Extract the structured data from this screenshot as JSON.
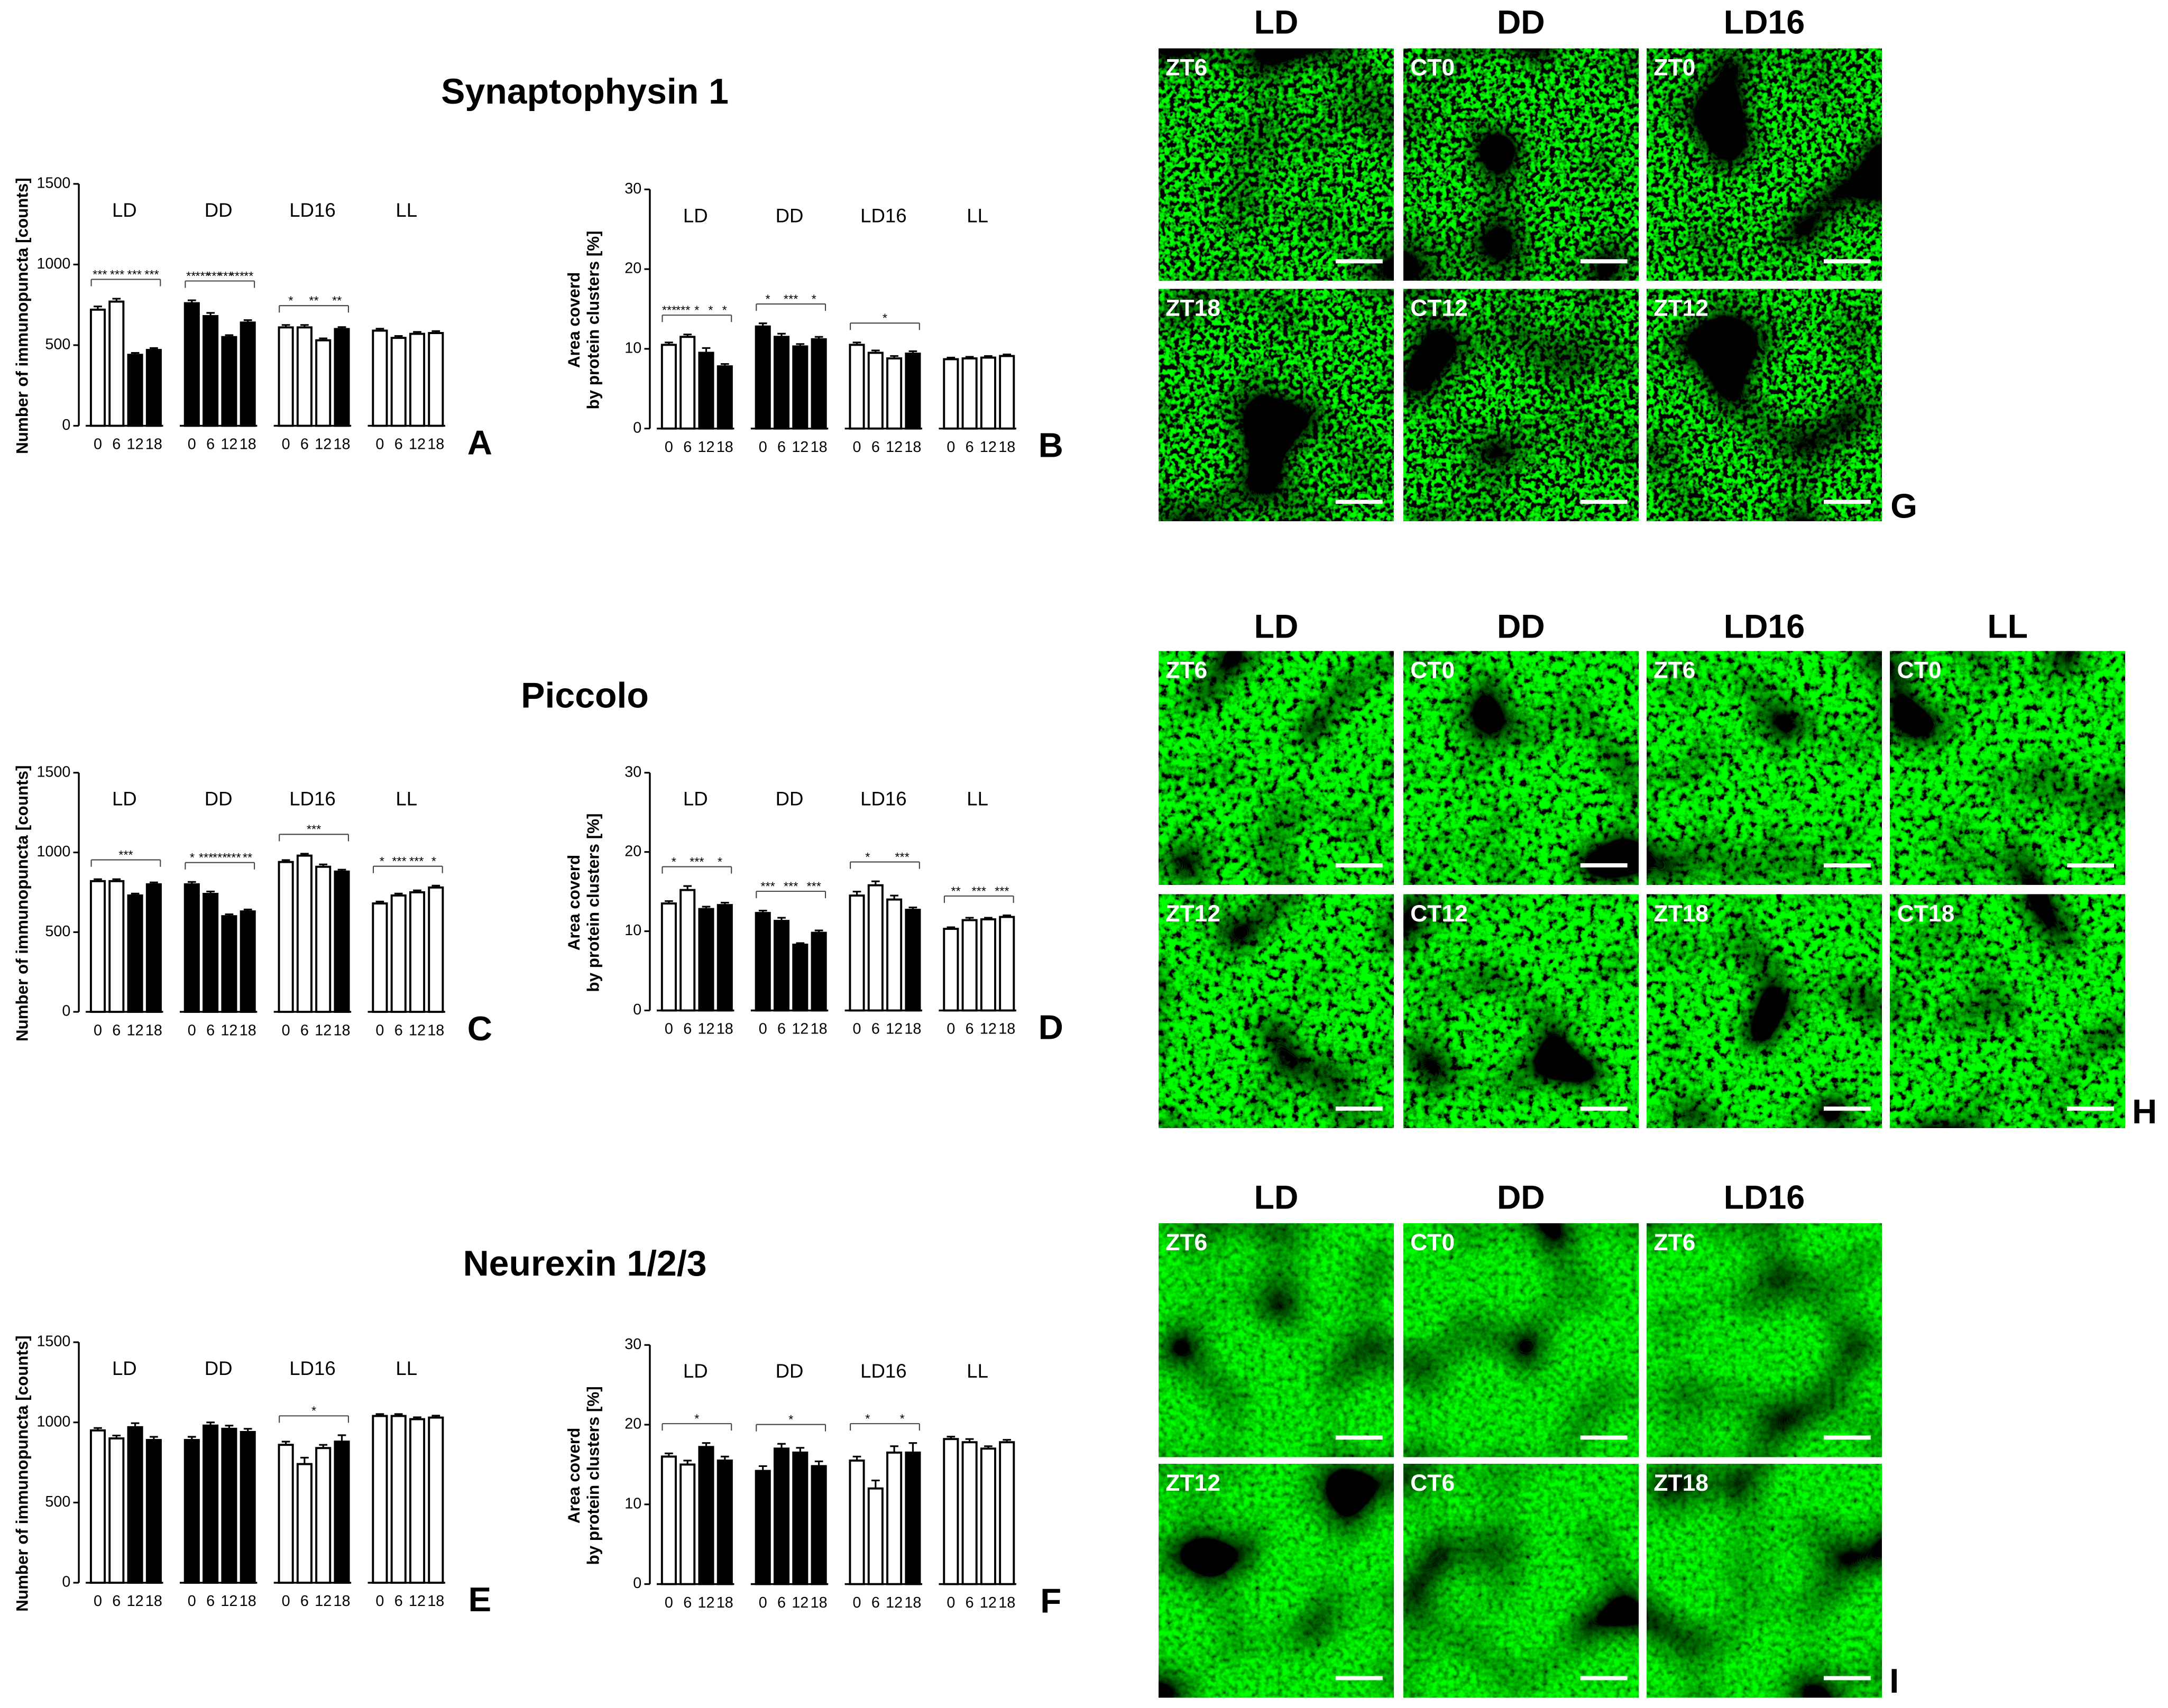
{
  "chart_data": [
    {
      "type": "bar",
      "panel": "A",
      "title": "Synaptophysin 1",
      "ylabel": "Number of immunopuncta [counts]",
      "ylim": [
        0,
        1500
      ],
      "yticks": [
        0,
        500,
        1000,
        1500
      ],
      "groups": [
        {
          "name": "LD",
          "categories": [
            0,
            6,
            12,
            18
          ],
          "values": [
            720,
            770,
            440,
            470
          ],
          "errors": [
            20,
            18,
            12,
            12
          ],
          "colors": [
            "#ffffff",
            "#ffffff",
            "#000000",
            "#000000"
          ],
          "annotations": [
            "***",
            "***",
            "***",
            "***"
          ]
        },
        {
          "name": "DD",
          "categories": [
            0,
            6,
            12,
            18
          ],
          "values": [
            760,
            680,
            550,
            640
          ],
          "errors": [
            18,
            20,
            12,
            15
          ],
          "colors": [
            "#000000",
            "#000000",
            "#000000",
            "#000000"
          ],
          "annotations": [
            "**",
            "***",
            "***",
            "***",
            "***",
            "**"
          ]
        },
        {
          "name": "LD16",
          "categories": [
            0,
            6,
            12,
            18
          ],
          "values": [
            610,
            610,
            530,
            600
          ],
          "errors": [
            15,
            15,
            12,
            12
          ],
          "colors": [
            "#ffffff",
            "#ffffff",
            "#ffffff",
            "#000000"
          ],
          "annotations": [
            "*",
            "**",
            "**"
          ]
        },
        {
          "name": "LL",
          "categories": [
            0,
            6,
            12,
            18
          ],
          "values": [
            590,
            545,
            570,
            575
          ],
          "errors": [
            12,
            12,
            12,
            12
          ],
          "colors": [
            "#ffffff",
            "#ffffff",
            "#ffffff",
            "#ffffff"
          ],
          "annotations": []
        }
      ]
    },
    {
      "type": "bar",
      "panel": "B",
      "ylabel": [
        "Area coverd",
        "by protein clusters [%]"
      ],
      "ylim": [
        0,
        30
      ],
      "yticks": [
        0,
        10,
        20,
        30
      ],
      "groups": [
        {
          "name": "LD",
          "categories": [
            0,
            6,
            12,
            18
          ],
          "values": [
            10.5,
            11.5,
            9.5,
            7.8
          ],
          "errors": [
            0.3,
            0.3,
            0.6,
            0.3
          ],
          "colors": [
            "#ffffff",
            "#ffffff",
            "#000000",
            "#000000"
          ],
          "annotations": [
            "***",
            "***",
            "*",
            "*",
            "*"
          ]
        },
        {
          "name": "DD",
          "categories": [
            0,
            6,
            12,
            18
          ],
          "values": [
            12.8,
            11.5,
            10.3,
            11.2
          ],
          "errors": [
            0.4,
            0.4,
            0.3,
            0.3
          ],
          "colors": [
            "#000000",
            "#000000",
            "#000000",
            "#000000"
          ],
          "annotations": [
            "*",
            "***",
            "*"
          ]
        },
        {
          "name": "LD16",
          "categories": [
            0,
            6,
            12,
            18
          ],
          "values": [
            10.5,
            9.5,
            8.8,
            9.4
          ],
          "errors": [
            0.3,
            0.3,
            0.3,
            0.3
          ],
          "colors": [
            "#ffffff",
            "#ffffff",
            "#ffffff",
            "#000000"
          ],
          "annotations": [
            "*"
          ]
        },
        {
          "name": "LL",
          "categories": [
            0,
            6,
            12,
            18
          ],
          "values": [
            8.7,
            8.8,
            8.9,
            9.1
          ],
          "errors": [
            0.2,
            0.2,
            0.2,
            0.2
          ],
          "colors": [
            "#ffffff",
            "#ffffff",
            "#ffffff",
            "#ffffff"
          ],
          "annotations": []
        }
      ]
    },
    {
      "type": "bar",
      "panel": "C",
      "title": "Piccolo",
      "ylabel": "Number of immunopuncta [counts]",
      "ylim": [
        0,
        1500
      ],
      "yticks": [
        0,
        500,
        1000,
        1500
      ],
      "groups": [
        {
          "name": "LD",
          "categories": [
            0,
            6,
            12,
            18
          ],
          "values": [
            820,
            820,
            730,
            800
          ],
          "errors": [
            12,
            12,
            12,
            12
          ],
          "colors": [
            "#ffffff",
            "#ffffff",
            "#000000",
            "#000000"
          ],
          "annotations": [
            "***"
          ]
        },
        {
          "name": "DD",
          "categories": [
            0,
            6,
            12,
            18
          ],
          "values": [
            800,
            740,
            600,
            630
          ],
          "errors": [
            15,
            15,
            12,
            12
          ],
          "colors": [
            "#000000",
            "#000000",
            "#000000",
            "#000000"
          ],
          "annotations": [
            "*",
            "***",
            "***",
            "***",
            "**"
          ]
        },
        {
          "name": "LD16",
          "categories": [
            0,
            6,
            12,
            18
          ],
          "values": [
            940,
            980,
            910,
            880
          ],
          "errors": [
            12,
            12,
            15,
            12
          ],
          "colors": [
            "#ffffff",
            "#ffffff",
            "#ffffff",
            "#000000"
          ],
          "annotations": [
            "***"
          ]
        },
        {
          "name": "LL",
          "categories": [
            0,
            6,
            12,
            18
          ],
          "values": [
            680,
            730,
            750,
            780
          ],
          "errors": [
            12,
            12,
            12,
            12
          ],
          "colors": [
            "#ffffff",
            "#ffffff",
            "#ffffff",
            "#ffffff"
          ],
          "annotations": [
            "*",
            "***",
            "***",
            "*"
          ]
        }
      ]
    },
    {
      "type": "bar",
      "panel": "D",
      "ylabel": [
        "Area coverd",
        "by protein clusters [%]"
      ],
      "ylim": [
        0,
        30
      ],
      "yticks": [
        0,
        10,
        20,
        30
      ],
      "groups": [
        {
          "name": "LD",
          "categories": [
            0,
            6,
            12,
            18
          ],
          "values": [
            13.5,
            15.2,
            12.8,
            13.3
          ],
          "errors": [
            0.3,
            0.5,
            0.3,
            0.3
          ],
          "colors": [
            "#ffffff",
            "#ffffff",
            "#000000",
            "#000000"
          ],
          "annotations": [
            "*",
            "***",
            "*"
          ]
        },
        {
          "name": "DD",
          "categories": [
            0,
            6,
            12,
            18
          ],
          "values": [
            12.3,
            11.3,
            8.3,
            9.8
          ],
          "errors": [
            0.3,
            0.4,
            0.2,
            0.3
          ],
          "colors": [
            "#000000",
            "#000000",
            "#000000",
            "#000000"
          ],
          "annotations": [
            "***",
            "***",
            "***"
          ]
        },
        {
          "name": "LD16",
          "categories": [
            0,
            6,
            12,
            18
          ],
          "values": [
            14.5,
            15.8,
            14,
            12.7
          ],
          "errors": [
            0.5,
            0.5,
            0.5,
            0.3
          ],
          "colors": [
            "#ffffff",
            "#ffffff",
            "#ffffff",
            "#000000"
          ],
          "annotations": [
            "*",
            "***"
          ]
        },
        {
          "name": "LL",
          "categories": [
            0,
            6,
            12,
            18
          ],
          "values": [
            10.3,
            11.4,
            11.5,
            11.8
          ],
          "errors": [
            0.2,
            0.3,
            0.2,
            0.2
          ],
          "colors": [
            "#ffffff",
            "#ffffff",
            "#ffffff",
            "#ffffff"
          ],
          "annotations": [
            "**",
            "***",
            "***"
          ]
        }
      ]
    },
    {
      "type": "bar",
      "panel": "E",
      "title": "Neurexin 1/2/3",
      "ylabel": "Number of immunopuncta [counts]",
      "ylim": [
        0,
        1500
      ],
      "yticks": [
        0,
        500,
        1000,
        1500
      ],
      "groups": [
        {
          "name": "LD",
          "categories": [
            0,
            6,
            12,
            18
          ],
          "values": [
            950,
            900,
            970,
            890
          ],
          "errors": [
            15,
            18,
            25,
            20
          ],
          "colors": [
            "#ffffff",
            "#ffffff",
            "#000000",
            "#000000"
          ],
          "annotations": []
        },
        {
          "name": "DD",
          "categories": [
            0,
            6,
            12,
            18
          ],
          "values": [
            890,
            980,
            960,
            940
          ],
          "errors": [
            20,
            20,
            20,
            20
          ],
          "colors": [
            "#000000",
            "#000000",
            "#000000",
            "#000000"
          ],
          "annotations": []
        },
        {
          "name": "LD16",
          "categories": [
            0,
            6,
            12,
            18
          ],
          "values": [
            860,
            740,
            840,
            880
          ],
          "errors": [
            20,
            40,
            20,
            40
          ],
          "colors": [
            "#ffffff",
            "#ffffff",
            "#ffffff",
            "#000000"
          ],
          "annotations": [
            "*"
          ]
        },
        {
          "name": "LL",
          "categories": [
            0,
            6,
            12,
            18
          ],
          "values": [
            1040,
            1040,
            1020,
            1030
          ],
          "errors": [
            12,
            12,
            12,
            12
          ],
          "colors": [
            "#ffffff",
            "#ffffff",
            "#ffffff",
            "#ffffff"
          ],
          "annotations": []
        }
      ]
    },
    {
      "type": "bar",
      "panel": "F",
      "ylabel": [
        "Area coverd",
        "by protein clusters [%]"
      ],
      "ylim": [
        0,
        30
      ],
      "yticks": [
        0,
        10,
        20,
        30
      ],
      "groups": [
        {
          "name": "LD",
          "categories": [
            0,
            6,
            12,
            18
          ],
          "values": [
            16,
            15,
            17.2,
            15.5
          ],
          "errors": [
            0.4,
            0.5,
            0.5,
            0.5
          ],
          "colors": [
            "#ffffff",
            "#ffffff",
            "#000000",
            "#000000"
          ],
          "annotations": [
            "*"
          ]
        },
        {
          "name": "DD",
          "categories": [
            0,
            6,
            12,
            18
          ],
          "values": [
            14.2,
            17,
            16.5,
            14.8
          ],
          "errors": [
            0.6,
            0.6,
            0.6,
            0.6
          ],
          "colors": [
            "#000000",
            "#000000",
            "#000000",
            "#000000"
          ],
          "annotations": [
            "*"
          ]
        },
        {
          "name": "LD16",
          "categories": [
            0,
            6,
            12,
            18
          ],
          "values": [
            15.5,
            12,
            16.5,
            16.5
          ],
          "errors": [
            0.5,
            1.0,
            0.8,
            1.2
          ],
          "colors": [
            "#ffffff",
            "#ffffff",
            "#ffffff",
            "#000000"
          ],
          "annotations": [
            "*",
            "*"
          ]
        },
        {
          "name": "LL",
          "categories": [
            0,
            6,
            12,
            18
          ],
          "values": [
            18.2,
            17.8,
            17,
            17.8
          ],
          "errors": [
            0.3,
            0.4,
            0.3,
            0.3
          ],
          "colors": [
            "#ffffff",
            "#ffffff",
            "#ffffff",
            "#ffffff"
          ],
          "annotations": []
        }
      ]
    }
  ],
  "image_panels": [
    {
      "letter": "G",
      "columns": [
        "LD",
        "DD",
        "LD16"
      ],
      "cells": [
        [
          "ZT6",
          "CT0",
          "ZT0"
        ],
        [
          "ZT18",
          "CT12",
          "ZT12"
        ]
      ]
    },
    {
      "letter": "H",
      "columns": [
        "LD",
        "DD",
        "LD16",
        "LL"
      ],
      "cells": [
        [
          "ZT6",
          "CT0",
          "ZT6",
          "CT0"
        ],
        [
          "ZT12",
          "CT12",
          "ZT18",
          "CT18"
        ]
      ]
    },
    {
      "letter": "I",
      "columns": [
        "LD",
        "DD",
        "LD16"
      ],
      "cells": [
        [
          "ZT6",
          "CT0",
          "ZT6"
        ],
        [
          "ZT12",
          "CT6",
          "ZT18"
        ]
      ]
    }
  ]
}
